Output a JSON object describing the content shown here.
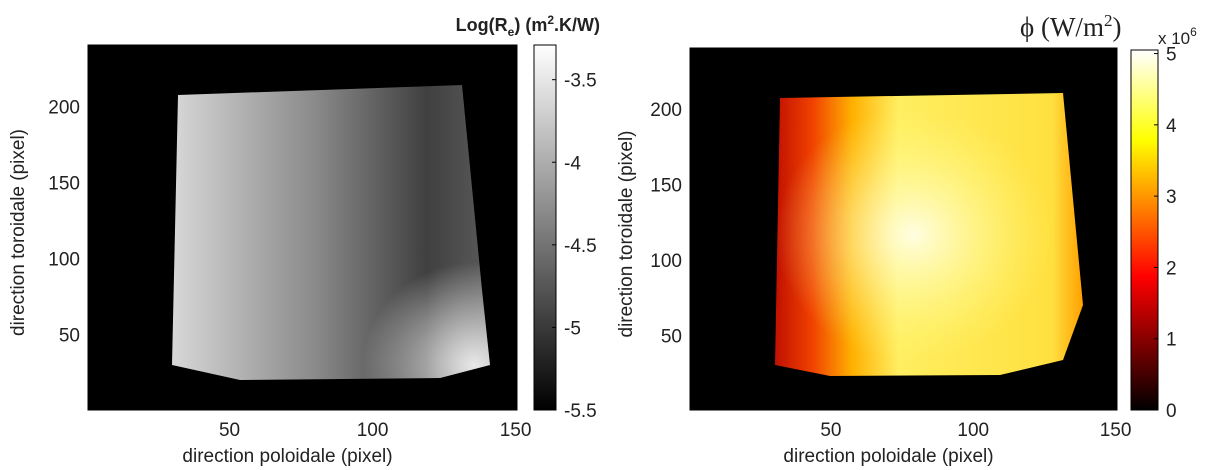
{
  "chart_data": [
    {
      "type": "heatmap",
      "title": [
        "Log(R",
        "e",
        ") (m",
        "2",
        ".K/W)"
      ],
      "xlabel": "direction poloidale (pixel)",
      "ylabel": "direction toroidale (pixel)",
      "xlim": [
        0.5,
        150.5
      ],
      "xticks": [
        50,
        100,
        150
      ],
      "ylim": [
        0.5,
        240.5
      ],
      "yticks": [
        50,
        100,
        150,
        200
      ],
      "colormap": "gray",
      "clim": [
        -5.5,
        -3.29
      ],
      "cticks": [
        -3.5,
        -4,
        -4.5,
        -5,
        -5.5
      ]
    },
    {
      "type": "heatmap",
      "title": [
        "ϕ (W/m",
        "2",
        ")"
      ],
      "colorbar_multiplier": [
        "x 10",
        "6"
      ],
      "xlabel": "direction poloidale (pixel)",
      "ylabel": "direction toroidale (pixel)",
      "xlim": [
        0.5,
        150.5
      ],
      "xticks": [
        50,
        100,
        150
      ],
      "ylim": [
        0.5,
        240.5
      ],
      "yticks": [
        50,
        100,
        150,
        200
      ],
      "colormap": "hot",
      "clim": [
        0,
        5.05
      ],
      "cticks": [
        0,
        1,
        2,
        3,
        4,
        5
      ]
    }
  ]
}
